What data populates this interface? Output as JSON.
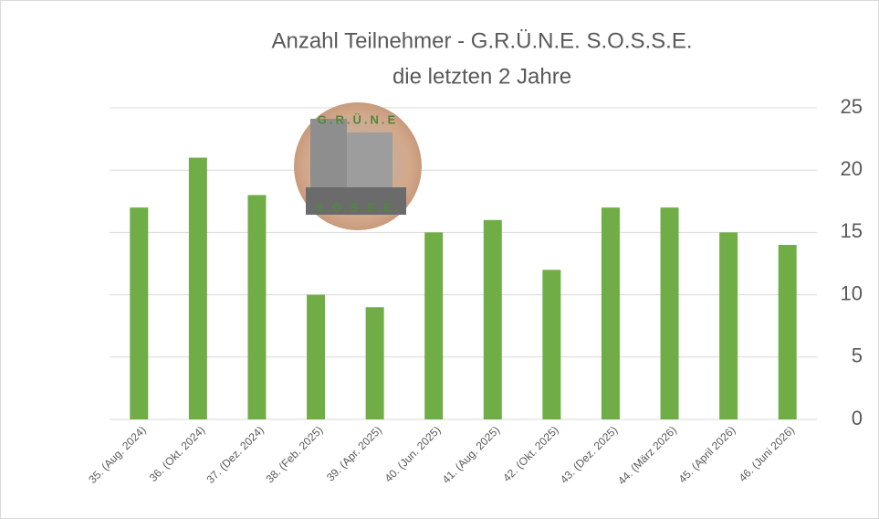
{
  "chart_data": {
    "type": "bar",
    "title": [
      "Anzahl Teilnehmer - G.R.Ü.N.E. S.O.S.S.E.",
      "die letzten 2 Jahre"
    ],
    "image_texts": [
      "G.R.Ü.N.E",
      "S.O.S.S.E."
    ],
    "categories": [
      "35. (Aug. 2024)",
      "36. (Okt. 2024)",
      "37. (Dez. 2024)",
      "38. (Feb. 2025)",
      "39. (Apr. 2025)",
      "40. (Jun. 2025)",
      "41. (Aug. 2025)",
      "42. (Okt. 2025)",
      "43. (Dez. 2025)",
      "44. (März 2026)",
      "45. (April 2026)",
      "46. (Juni 2026)"
    ],
    "values": [
      17,
      21,
      18,
      10,
      9,
      15,
      16,
      12,
      17,
      17,
      15,
      14
    ],
    "color": "#70ad47",
    "ylim": [
      0,
      25
    ],
    "yticks": [
      0,
      5,
      10,
      15,
      20,
      25
    ],
    "grid": true,
    "y_axis_side": "right"
  }
}
